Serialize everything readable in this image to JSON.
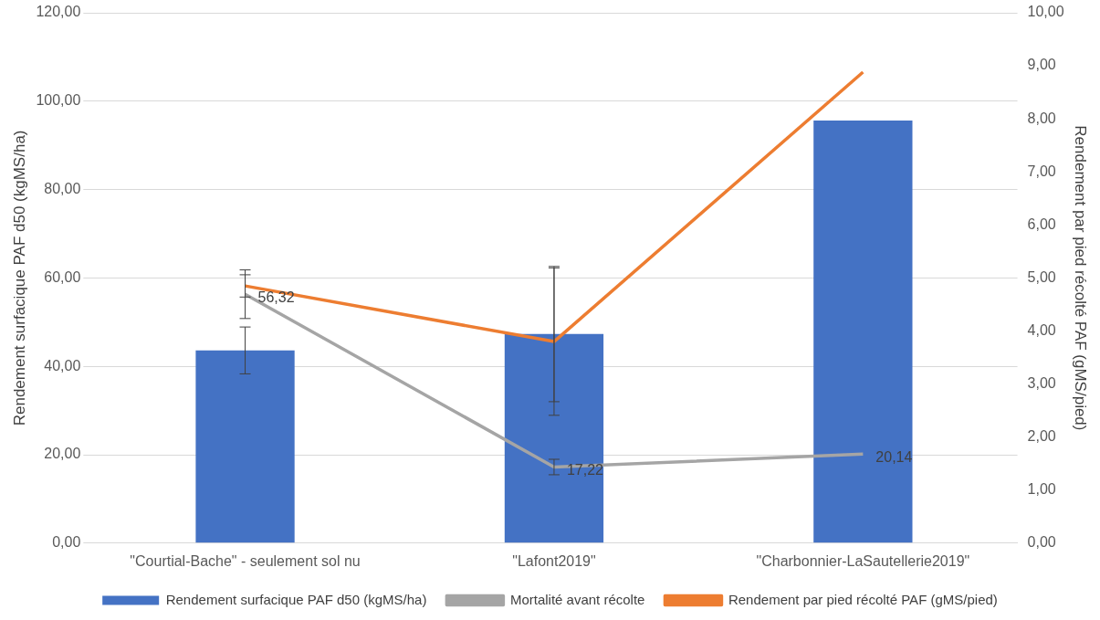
{
  "chart_data": {
    "type": "bar",
    "categories": [
      "\"Courtial-Bache\" - seulement sol nu",
      "\"Lafont2019\"",
      "\"Charbonnier-LaSautellerie2019\""
    ],
    "ylabel": "Rendement surfacique PAF d50 (kgMS/ha)",
    "y2label": "Rendement par pied récolté PAF (gMS/pied)",
    "ylim": [
      0,
      120
    ],
    "yticks": [
      {
        "value": 0,
        "label": "0,00"
      },
      {
        "value": 20,
        "label": "20,00"
      },
      {
        "value": 40,
        "label": "40,00"
      },
      {
        "value": 60,
        "label": "60,00"
      },
      {
        "value": 80,
        "label": "80,00"
      },
      {
        "value": 100,
        "label": "100,00"
      },
      {
        "value": 120,
        "label": "120,00"
      }
    ],
    "y2lim": [
      0,
      10
    ],
    "y2ticks": [
      {
        "value": 0,
        "label": "0,00"
      },
      {
        "value": 1,
        "label": "1,00"
      },
      {
        "value": 2,
        "label": "2,00"
      },
      {
        "value": 3,
        "label": "3,00"
      },
      {
        "value": 4,
        "label": "4,00"
      },
      {
        "value": 5,
        "label": "5,00"
      },
      {
        "value": 6,
        "label": "6,00"
      },
      {
        "value": 7,
        "label": "7,00"
      },
      {
        "value": 8,
        "label": "8,00"
      },
      {
        "value": 9,
        "label": "9,00"
      },
      {
        "value": 10,
        "label": "10,00"
      }
    ],
    "grid": "y",
    "legend": "bottom",
    "marker": "none",
    "line_style": "solid",
    "series": [
      {
        "name": "Rendement surfacique PAF d50 (kgMS/ha)",
        "color": "#4472c4",
        "values": [
          43.6,
          47.3,
          95.6
        ],
        "errors": [
          5.3,
          15.3,
          null
        ]
      },
      {
        "name": "Mortalité avant récolte",
        "type": "line",
        "color": "#a5a5a5",
        "values": [
          56.32,
          17.22,
          20.14
        ],
        "errors": [
          5.5,
          1.75,
          null
        ],
        "value_labels": [
          "56,32",
          "17,22",
          "20,14"
        ]
      },
      {
        "name": "Rendement par pied récolté PAF (gMS/pied)",
        "type": "line",
        "axis": "y2",
        "color": "#ed7d31",
        "values": [
          4.85,
          3.8,
          8.88
        ],
        "errors": [
          0.21,
          1.39,
          null
        ]
      }
    ]
  }
}
